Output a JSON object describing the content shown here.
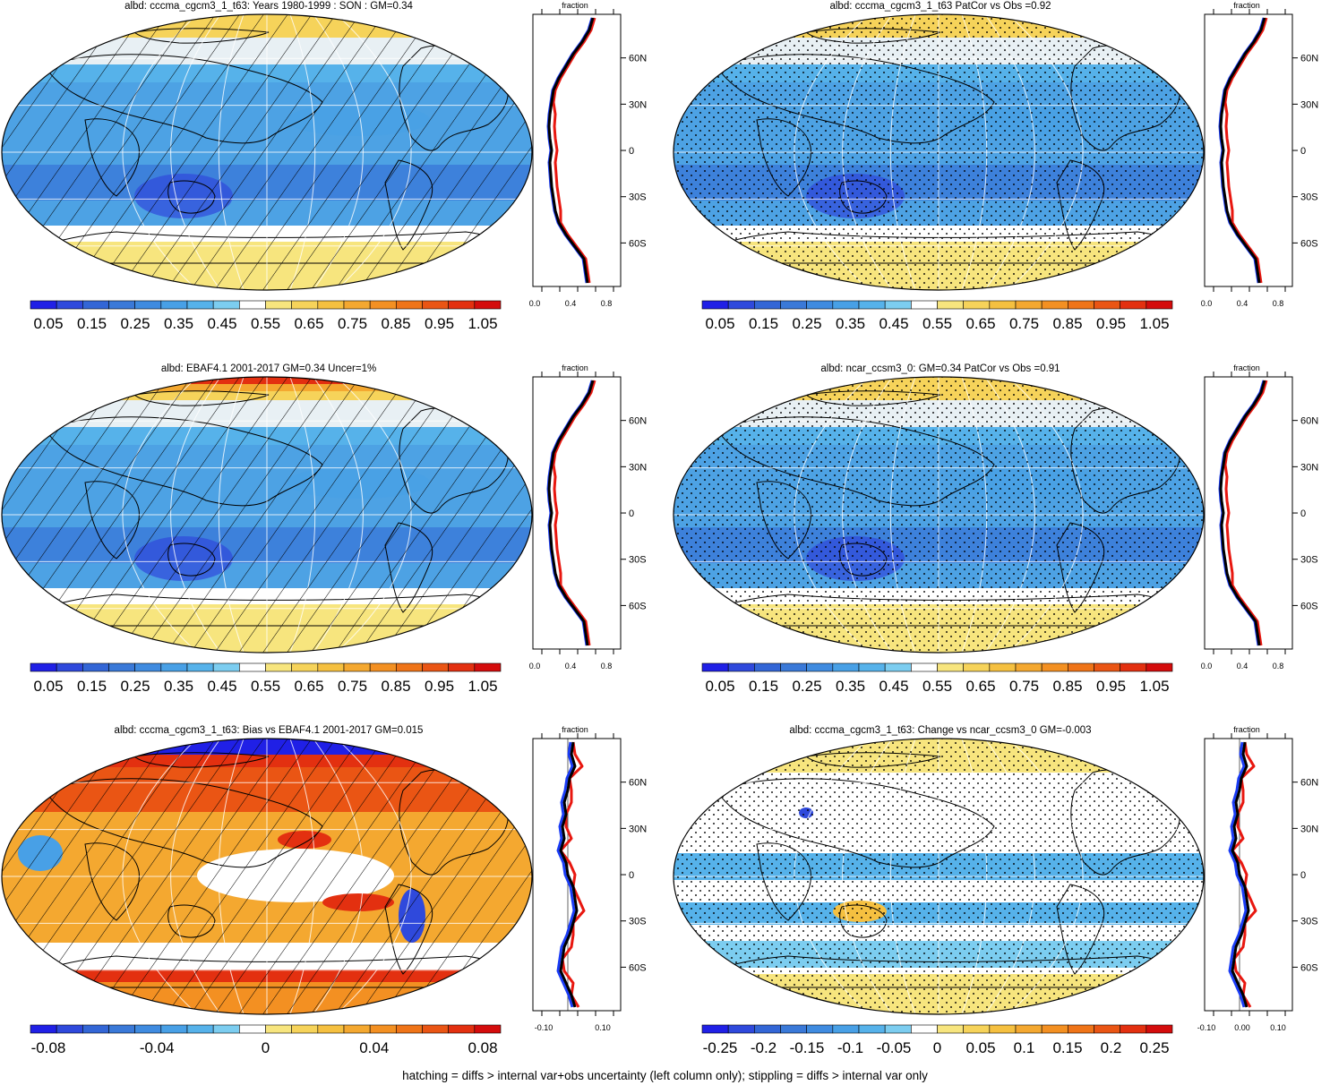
{
  "colors": {
    "blues": [
      "#2020e6",
      "#2f49dc",
      "#3366d6",
      "#3a79d8",
      "#3f8be0",
      "#48a0e6",
      "#56b2ea",
      "#7ccdf0"
    ],
    "oranges": [
      "#f7e57e",
      "#f6d35a",
      "#f5c040",
      "#f4a830",
      "#f39022",
      "#ef7418",
      "#ea5514",
      "#e33010",
      "#d40c0c",
      "#ee1111"
    ],
    "ocean_default": "#4da2e4",
    "land_line": "#000000",
    "model_line": "#e8170f",
    "obs_line": "#1a3cf5",
    "third_line": "#000000"
  },
  "panels": [
    {
      "title": "albd: cccma_cgcm3_1_t63: Years 1980-1999 : SON : GM=0.34",
      "overlay": "hatch",
      "field": "albedo",
      "colorbar_labels": [
        "0.05",
        "0.15",
        "0.25",
        "0.35",
        "0.45",
        "0.55",
        "0.65",
        "0.75",
        "0.85",
        "0.95",
        "1.05"
      ],
      "profile": {
        "title": "fraction",
        "xticks": [
          "0.0",
          "0.4",
          "0.8"
        ],
        "yticks": [
          "60N",
          "30N",
          "0",
          "30S",
          "60S"
        ],
        "kind": "abs"
      }
    },
    {
      "title": "albd: cccma_cgcm3_1_t63 PatCor vs Obs =0.92",
      "overlay": "stipple",
      "field": "albedo",
      "colorbar_labels": [
        "0.05",
        "0.15",
        "0.25",
        "0.35",
        "0.45",
        "0.55",
        "0.65",
        "0.75",
        "0.85",
        "0.95",
        "1.05"
      ],
      "profile": {
        "title": "fraction",
        "xticks": [
          "0.0",
          "0.4",
          "0.8"
        ],
        "yticks": [
          "60N",
          "30N",
          "0",
          "30S",
          "60S"
        ],
        "kind": "abs"
      }
    },
    {
      "title": "albd: EBAF4.1 2001-2017 GM=0.34 Uncer=1%",
      "overlay": "hatch",
      "field": "albedo_obs",
      "colorbar_labels": [
        "0.05",
        "0.15",
        "0.25",
        "0.35",
        "0.45",
        "0.55",
        "0.65",
        "0.75",
        "0.85",
        "0.95",
        "1.05"
      ],
      "profile": {
        "title": "fraction",
        "xticks": [
          "0.0",
          "0.4",
          "0.8"
        ],
        "yticks": [
          "60N",
          "30N",
          "0",
          "30S",
          "60S"
        ],
        "kind": "obs"
      }
    },
    {
      "title": "albd: ncar_ccsm3_0: GM=0.34 PatCor vs Obs =0.91",
      "overlay": "stipple",
      "field": "albedo",
      "colorbar_labels": [
        "0.05",
        "0.15",
        "0.25",
        "0.35",
        "0.45",
        "0.55",
        "0.65",
        "0.75",
        "0.85",
        "0.95",
        "1.05"
      ],
      "profile": {
        "title": "fraction",
        "xticks": [
          "0.0",
          "0.4",
          "0.8"
        ],
        "yticks": [
          "60N",
          "30N",
          "0",
          "30S",
          "60S"
        ],
        "kind": "abs"
      }
    },
    {
      "title": "albd: cccma_cgcm3_1_t63: Bias vs EBAF4.1 2001-2017  GM=0.015",
      "overlay": "hatch",
      "field": "bias",
      "colorbar_labels": [
        "-0.08",
        "-0.04",
        "0",
        "0.04",
        "0.08"
      ],
      "profile": {
        "title": "fraction",
        "xticks": [
          "-0.10",
          "0.10"
        ],
        "yticks": [
          "60N",
          "30N",
          "0",
          "30S",
          "60S"
        ],
        "kind": "bias"
      }
    },
    {
      "title": "albd: cccma_cgcm3_1_t63: Change vs ncar_ccsm3_0 GM=-0.003",
      "overlay": "stipple",
      "field": "change",
      "colorbar_labels": [
        "-0.25",
        "-0.2",
        "-0.15",
        "-0.1",
        "-0.05",
        "0",
        "0.05",
        "0.1",
        "0.15",
        "0.2",
        "0.25"
      ],
      "profile": {
        "title": "fraction",
        "xticks": [
          "-0.10",
          "0.00",
          "0.10"
        ],
        "yticks": [
          "60N",
          "30N",
          "0",
          "30S",
          "60S"
        ],
        "kind": "change"
      }
    }
  ],
  "footer": "hatching = diffs > internal var+obs uncertainty (left column only); stippling = diffs > internal var only"
}
